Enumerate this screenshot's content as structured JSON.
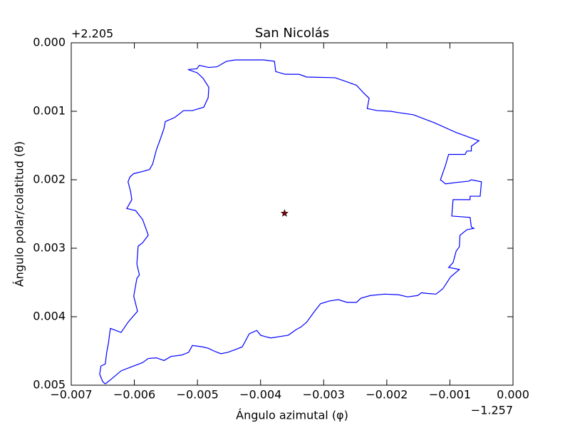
{
  "chart_data": {
    "type": "line",
    "title": "San Nicolás",
    "xlabel": "Ángulo azimutal (φ)",
    "ylabel": "Ángulo polar/colatitud (θ)",
    "x_offset_label": "−1.257",
    "y_offset_label": "+2.205",
    "xlim": [
      -0.007,
      0
    ],
    "ylim": [
      0.005,
      0
    ],
    "xticks": [
      {
        "value": -0.007,
        "label": "−0.007"
      },
      {
        "value": -0.006,
        "label": "−0.006"
      },
      {
        "value": -0.005,
        "label": "−0.005"
      },
      {
        "value": -0.004,
        "label": "−0.004"
      },
      {
        "value": -0.003,
        "label": "−0.003"
      },
      {
        "value": -0.002,
        "label": "−0.002"
      },
      {
        "value": -0.001,
        "label": "−0.001"
      },
      {
        "value": 0,
        "label": "0.000"
      }
    ],
    "yticks": [
      {
        "value": 0,
        "label": "0.000"
      },
      0.001,
      0.002,
      0.003,
      0.004,
      0.005
    ],
    "series": [
      {
        "type": "line",
        "color": "#0000ff",
        "x": [
          -0.00515,
          -0.00501,
          -0.00497,
          -0.00482,
          -0.00469,
          -0.00454,
          -0.0044,
          -0.00418,
          -0.00395,
          -0.00378,
          -0.00376,
          -0.00361,
          -0.00339,
          -0.00327,
          -0.00282,
          -0.0026,
          -0.00248,
          -0.00237,
          -0.00228,
          -0.00231,
          -0.00215,
          -0.00194,
          -0.00181,
          -0.00158,
          -0.00124,
          -0.0009,
          -0.00054,
          -0.00066,
          -0.00066,
          -0.00073,
          -0.00076,
          -0.00102,
          -0.00107,
          -0.00115,
          -0.00107,
          -0.0009,
          -0.0007,
          -0.00066,
          -0.0005,
          -0.00052,
          -0.00068,
          -0.00068,
          -0.00095,
          -0.00097,
          -0.00068,
          -0.00066,
          -0.00062,
          -0.00073,
          -0.00084,
          -0.00085,
          -0.0009,
          -0.00095,
          -0.00102,
          -0.00085,
          -0.00099,
          -0.00111,
          -0.00122,
          -0.00136,
          -0.00145,
          -0.00151,
          -0.00167,
          -0.00181,
          -0.00203,
          -0.00226,
          -0.00241,
          -0.00248,
          -0.00263,
          -0.00277,
          -0.00291,
          -0.00305,
          -0.00311,
          -0.00316,
          -0.00327,
          -0.00336,
          -0.00344,
          -0.00356,
          -0.00384,
          -0.00393,
          -0.004,
          -0.00406,
          -0.00418,
          -0.00429,
          -0.0044,
          -0.00452,
          -0.00463,
          -0.00474,
          -0.00483,
          -0.00492,
          -0.00508,
          -0.00514,
          -0.00525,
          -0.00542,
          -0.00553,
          -0.00565,
          -0.00578,
          -0.00587,
          -0.00607,
          -0.00621,
          -0.00639,
          -0.00646,
          -0.0065,
          -0.00655,
          -0.00653,
          -0.00646,
          -0.00644,
          -0.00641,
          -0.00638,
          -0.00621,
          -0.0061,
          -0.00595,
          -0.00601,
          -0.00596,
          -0.00592,
          -0.00596,
          -0.00594,
          -0.00587,
          -0.00578,
          -0.00581,
          -0.00587,
          -0.00598,
          -0.00612,
          -0.00604,
          -0.00606,
          -0.0061,
          -0.00607,
          -0.00601,
          -0.00587,
          -0.00576,
          -0.00571,
          -0.00565,
          -0.00559,
          -0.00553,
          -0.00551,
          -0.00536,
          -0.00522,
          -0.00508,
          -0.0049,
          -0.00483,
          -0.00482,
          -0.00491,
          -0.005,
          -0.00515
        ],
        "values": [
          0.00039,
          0.00038,
          0.00033,
          0.00036,
          0.00035,
          0.00027,
          0.00025,
          0.00025,
          0.00025,
          0.00027,
          0.00042,
          0.00046,
          0.00046,
          0.0005,
          0.00051,
          0.00058,
          0.00062,
          0.00073,
          0.00081,
          0.00096,
          0.00099,
          0.001,
          0.00102,
          0.00105,
          0.00117,
          0.00131,
          0.00143,
          0.00151,
          0.00158,
          0.00158,
          0.00163,
          0.00163,
          0.00179,
          0.002,
          0.00206,
          0.00204,
          0.00202,
          0.002,
          0.00203,
          0.00224,
          0.00224,
          0.00229,
          0.00229,
          0.00253,
          0.00255,
          0.00269,
          0.00271,
          0.00273,
          0.00281,
          0.00298,
          0.00304,
          0.00321,
          0.00328,
          0.00331,
          0.00342,
          0.00359,
          0.00367,
          0.00366,
          0.00365,
          0.00369,
          0.00371,
          0.00368,
          0.00367,
          0.00369,
          0.00373,
          0.00379,
          0.00379,
          0.00375,
          0.00377,
          0.00381,
          0.00388,
          0.00394,
          0.00408,
          0.00415,
          0.00419,
          0.00427,
          0.00431,
          0.00429,
          0.00427,
          0.0042,
          0.00425,
          0.00444,
          0.00448,
          0.00452,
          0.00454,
          0.0045,
          0.00446,
          0.00444,
          0.00442,
          0.00452,
          0.00456,
          0.00458,
          0.00464,
          0.0046,
          0.00461,
          0.00467,
          0.00474,
          0.00479,
          0.00493,
          0.00498,
          0.00495,
          0.00484,
          0.00472,
          0.00469,
          0.00453,
          0.00438,
          0.00417,
          0.00423,
          0.00408,
          0.00392,
          0.0037,
          0.00344,
          0.00339,
          0.00323,
          0.00297,
          0.00292,
          0.00281,
          0.00273,
          0.00258,
          0.00245,
          0.00242,
          0.00229,
          0.00217,
          0.00203,
          0.00196,
          0.00191,
          0.00188,
          0.00185,
          0.00177,
          0.00156,
          0.00141,
          0.00125,
          0.00115,
          0.00109,
          0.00099,
          0.00099,
          0.00094,
          0.0008,
          0.00065,
          0.00052,
          0.00044,
          0.00039
        ]
      },
      {
        "type": "scatter",
        "marker": "star",
        "color": "#8b0000",
        "x": [
          -0.00362
        ],
        "values": [
          0.00249
        ]
      }
    ]
  }
}
